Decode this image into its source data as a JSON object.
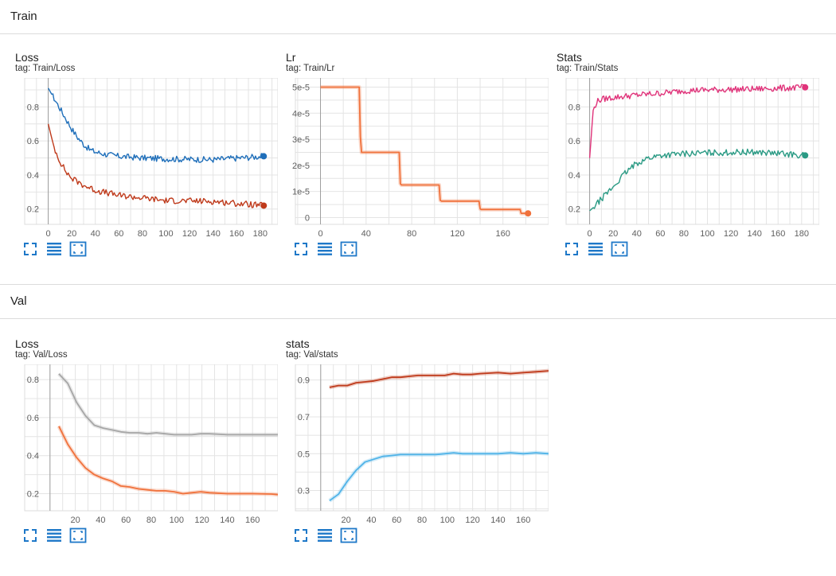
{
  "sections": [
    {
      "title": "Train"
    },
    {
      "title": "Val"
    }
  ],
  "cards": [
    {
      "id": "train-loss",
      "title": "Loss",
      "tag": "tag: Train/Loss",
      "chart_data": {
        "type": "line",
        "xlim": [
          -20,
          195
        ],
        "ylim": [
          0.11,
          0.97
        ],
        "xticks": [
          0,
          20,
          40,
          60,
          80,
          100,
          120,
          140,
          160,
          180
        ],
        "yticks": [
          0.2,
          0.4,
          0.6,
          0.8
        ],
        "ytick_format": "dec1",
        "noisy": true,
        "series": [
          {
            "color": "#1f6fba",
            "end_marker": true,
            "points": [
              [
                0,
                0.91
              ],
              [
                5,
                0.85
              ],
              [
                10,
                0.79
              ],
              [
                15,
                0.73
              ],
              [
                20,
                0.67
              ],
              [
                25,
                0.62
              ],
              [
                30,
                0.58
              ],
              [
                35,
                0.55
              ],
              [
                40,
                0.535
              ],
              [
                50,
                0.52
              ],
              [
                60,
                0.51
              ],
              [
                80,
                0.5
              ],
              [
                100,
                0.495
              ],
              [
                140,
                0.49
              ],
              [
                183,
                0.51
              ]
            ]
          },
          {
            "color": "#bf3a1b",
            "end_marker": true,
            "points": [
              [
                0,
                0.7
              ],
              [
                5,
                0.56
              ],
              [
                10,
                0.48
              ],
              [
                15,
                0.42
              ],
              [
                20,
                0.38
              ],
              [
                30,
                0.34
              ],
              [
                40,
                0.31
              ],
              [
                60,
                0.28
              ],
              [
                80,
                0.265
              ],
              [
                100,
                0.25
              ],
              [
                140,
                0.245
              ],
              [
                183,
                0.22
              ]
            ]
          }
        ]
      }
    },
    {
      "id": "train-lr",
      "title": "Lr",
      "tag": "tag: Train/Lr",
      "chart_data": {
        "type": "line",
        "xlim": [
          -22,
          200
        ],
        "ylim": [
          -2.6e-06,
          5.35e-05
        ],
        "xticks": [
          0,
          40,
          80,
          120,
          160
        ],
        "yticks": [
          0,
          1e-05,
          2e-05,
          3e-05,
          4e-05,
          5e-05
        ],
        "ytick_labels": [
          "0",
          "1e-5",
          "2e-5",
          "3e-5",
          "4e-5",
          "5e-5"
        ],
        "series": [
          {
            "color": "#f0713b",
            "end_marker": true,
            "points": [
              [
                0,
                5e-05
              ],
              [
                34,
                5e-05
              ],
              [
                35,
                3.1e-05
              ],
              [
                36,
                2.5e-05
              ],
              [
                69,
                2.5e-05
              ],
              [
                70,
                1.3e-05
              ],
              [
                71,
                1.25e-05
              ],
              [
                104,
                1.25e-05
              ],
              [
                105,
                6.6e-06
              ],
              [
                106,
                6.3e-06
              ],
              [
                139,
                6.3e-06
              ],
              [
                140,
                3.3e-06
              ],
              [
                141,
                3.1e-06
              ],
              [
                175,
                3.1e-06
              ],
              [
                176,
                1.6e-06
              ],
              [
                182,
                1.6e-06
              ]
            ]
          }
        ]
      }
    },
    {
      "id": "train-stats",
      "title": "Stats",
      "tag": "tag: Train/Stats",
      "chart_data": {
        "type": "line",
        "xlim": [
          -20,
          195
        ],
        "ylim": [
          0.11,
          0.97
        ],
        "xticks": [
          0,
          20,
          40,
          60,
          80,
          100,
          120,
          140,
          160,
          180
        ],
        "yticks": [
          0.2,
          0.4,
          0.6,
          0.8
        ],
        "ytick_format": "dec1",
        "noisy": true,
        "series": [
          {
            "color": "#e0337a",
            "end_marker": true,
            "points": [
              [
                0,
                0.5
              ],
              [
                3,
                0.78
              ],
              [
                6,
                0.83
              ],
              [
                10,
                0.845
              ],
              [
                20,
                0.855
              ],
              [
                40,
                0.87
              ],
              [
                60,
                0.88
              ],
              [
                80,
                0.895
              ],
              [
                100,
                0.9
              ],
              [
                140,
                0.905
              ],
              [
                183,
                0.915
              ]
            ]
          },
          {
            "color": "#2a9a84",
            "end_marker": true,
            "points": [
              [
                0,
                0.19
              ],
              [
                5,
                0.22
              ],
              [
                10,
                0.26
              ],
              [
                20,
                0.33
              ],
              [
                30,
                0.41
              ],
              [
                40,
                0.47
              ],
              [
                50,
                0.5
              ],
              [
                60,
                0.515
              ],
              [
                80,
                0.525
              ],
              [
                100,
                0.53
              ],
              [
                140,
                0.535
              ],
              [
                183,
                0.515
              ]
            ]
          }
        ]
      }
    },
    {
      "id": "val-loss",
      "title": "Loss",
      "tag": "tag: Val/Loss",
      "chart_data": {
        "type": "line",
        "xlim": [
          -20,
          180
        ],
        "ylim": [
          0.11,
          0.88
        ],
        "xticks": [
          20,
          40,
          60,
          80,
          100,
          120,
          140,
          160
        ],
        "yticks": [
          0.2,
          0.4,
          0.6,
          0.8
        ],
        "ytick_format": "dec1",
        "series": [
          {
            "color": "#a6a6a6",
            "end_marker": false,
            "points": [
              [
                7,
                0.83
              ],
              [
                14,
                0.78
              ],
              [
                21,
                0.68
              ],
              [
                28,
                0.61
              ],
              [
                35,
                0.56
              ],
              [
                42,
                0.545
              ],
              [
                49,
                0.535
              ],
              [
                56,
                0.525
              ],
              [
                63,
                0.52
              ],
              [
                70,
                0.52
              ],
              [
                77,
                0.515
              ],
              [
                84,
                0.52
              ],
              [
                91,
                0.515
              ],
              [
                98,
                0.51
              ],
              [
                105,
                0.51
              ],
              [
                112,
                0.51
              ],
              [
                119,
                0.515
              ],
              [
                126,
                0.515
              ],
              [
                140,
                0.51
              ],
              [
                150,
                0.51
              ],
              [
                160,
                0.51
              ],
              [
                175,
                0.51
              ],
              [
                180,
                0.51
              ]
            ]
          },
          {
            "color": "#f0713b",
            "end_marker": false,
            "points": [
              [
                7,
                0.555
              ],
              [
                14,
                0.46
              ],
              [
                21,
                0.39
              ],
              [
                28,
                0.335
              ],
              [
                35,
                0.3
              ],
              [
                42,
                0.28
              ],
              [
                49,
                0.265
              ],
              [
                56,
                0.24
              ],
              [
                63,
                0.235
              ],
              [
                70,
                0.225
              ],
              [
                77,
                0.22
              ],
              [
                84,
                0.215
              ],
              [
                91,
                0.215
              ],
              [
                98,
                0.21
              ],
              [
                105,
                0.2
              ],
              [
                112,
                0.205
              ],
              [
                119,
                0.21
              ],
              [
                126,
                0.205
              ],
              [
                140,
                0.2
              ],
              [
                150,
                0.2
              ],
              [
                160,
                0.2
              ],
              [
                175,
                0.198
              ],
              [
                180,
                0.195
              ]
            ]
          }
        ]
      }
    },
    {
      "id": "val-stats",
      "title": "stats",
      "tag": "tag: Val/stats",
      "chart_data": {
        "type": "line",
        "xlim": [
          -20,
          180
        ],
        "ylim": [
          0.19,
          0.985
        ],
        "xticks": [
          20,
          40,
          60,
          80,
          100,
          120,
          140,
          160
        ],
        "yticks": [
          0.3,
          0.5,
          0.7,
          0.9
        ],
        "ytick_format": "dec1",
        "series": [
          {
            "color": "#bf3a1b",
            "end_marker": false,
            "points": [
              [
                7,
                0.86
              ],
              [
                14,
                0.87
              ],
              [
                21,
                0.87
              ],
              [
                28,
                0.885
              ],
              [
                35,
                0.89
              ],
              [
                42,
                0.895
              ],
              [
                49,
                0.905
              ],
              [
                56,
                0.915
              ],
              [
                63,
                0.915
              ],
              [
                70,
                0.92
              ],
              [
                77,
                0.925
              ],
              [
                84,
                0.925
              ],
              [
                91,
                0.925
              ],
              [
                98,
                0.925
              ],
              [
                105,
                0.935
              ],
              [
                112,
                0.93
              ],
              [
                119,
                0.93
              ],
              [
                126,
                0.935
              ],
              [
                140,
                0.94
              ],
              [
                150,
                0.935
              ],
              [
                160,
                0.94
              ],
              [
                170,
                0.945
              ],
              [
                180,
                0.95
              ]
            ]
          },
          {
            "color": "#4fb3e8",
            "end_marker": false,
            "points": [
              [
                7,
                0.245
              ],
              [
                14,
                0.28
              ],
              [
                21,
                0.35
              ],
              [
                28,
                0.41
              ],
              [
                35,
                0.455
              ],
              [
                42,
                0.47
              ],
              [
                49,
                0.485
              ],
              [
                56,
                0.49
              ],
              [
                63,
                0.495
              ],
              [
                70,
                0.495
              ],
              [
                77,
                0.495
              ],
              [
                84,
                0.495
              ],
              [
                91,
                0.495
              ],
              [
                98,
                0.5
              ],
              [
                105,
                0.505
              ],
              [
                112,
                0.5
              ],
              [
                119,
                0.5
              ],
              [
                126,
                0.5
              ],
              [
                140,
                0.5
              ],
              [
                150,
                0.505
              ],
              [
                160,
                0.5
              ],
              [
                170,
                0.505
              ],
              [
                180,
                0.5
              ]
            ]
          }
        ]
      }
    }
  ]
}
